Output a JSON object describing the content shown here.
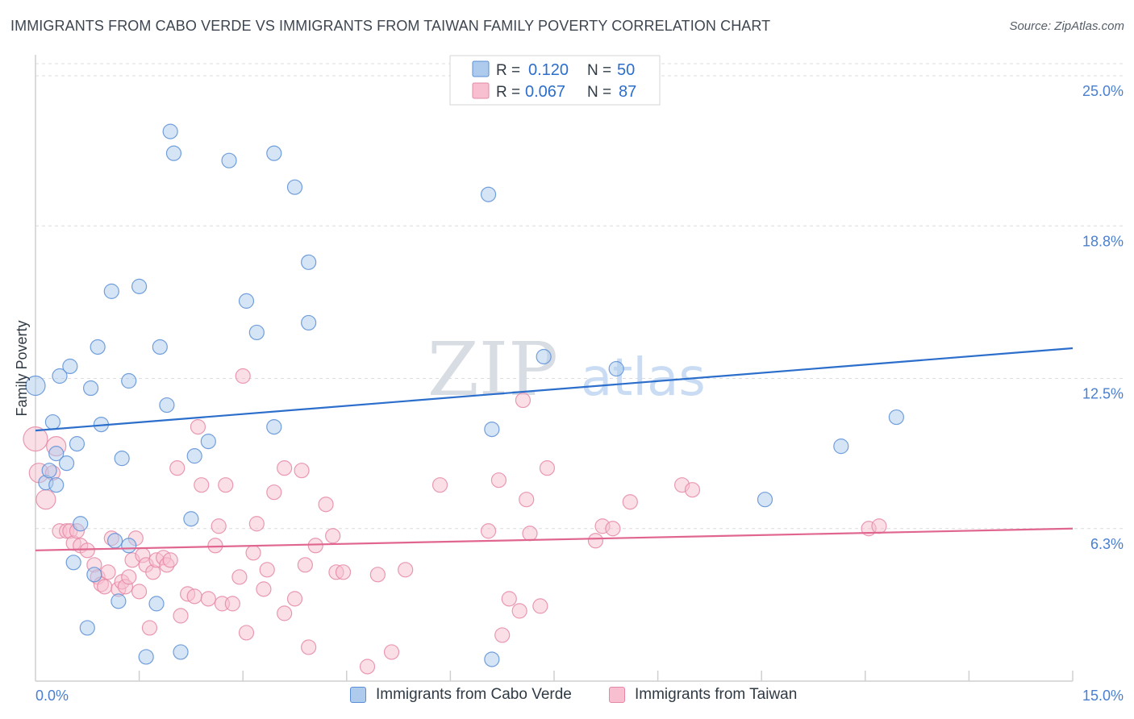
{
  "header": {
    "title": "IMMIGRANTS FROM CABO VERDE VS IMMIGRANTS FROM TAIWAN FAMILY POVERTY CORRELATION CHART",
    "source": "Source: ZipAtlas.com"
  },
  "colors": {
    "blue_fill": "#aecbee",
    "blue_stroke": "#5a8fd6",
    "blue_line": "#2c6ecb",
    "pink_fill": "#f7bfd0",
    "pink_stroke": "#e588a6",
    "pink_line": "#e0668f",
    "tick_text": "#4a7fd0",
    "grid": "#dcdcdc"
  },
  "chart_data": {
    "type": "scatter",
    "title": "IMMIGRANTS FROM CABO VERDE VS IMMIGRANTS FROM TAIWAN FAMILY POVERTY CORRELATION CHART",
    "xlabel": "",
    "ylabel": "Family Poverty",
    "xlim": [
      0,
      15
    ],
    "ylim": [
      0,
      25.8
    ],
    "x_tick_labels": [
      "0.0%",
      "15.0%"
    ],
    "y_ticks": [
      {
        "value": 25.0,
        "label": "25.0%"
      },
      {
        "value": 18.8,
        "label": "18.8%"
      },
      {
        "value": 12.5,
        "label": "12.5%"
      },
      {
        "value": 6.3,
        "label": "6.3%"
      }
    ],
    "watermark": {
      "bold": "ZIP",
      "light": "atlas"
    },
    "legend": [
      {
        "r_label": "R =",
        "r_value": "0.120",
        "n_label": "N =",
        "n_value": "50"
      },
      {
        "r_label": "R =",
        "r_value": "0.067",
        "n_label": "N =",
        "n_value": "87"
      }
    ],
    "series": [
      {
        "name": "Immigrants from Cabo Verde",
        "color": "blue",
        "trend": {
          "x": [
            0,
            15
          ],
          "y": [
            10.35,
            13.75
          ]
        },
        "points": [
          [
            0.0,
            12.2
          ],
          [
            0.15,
            8.2
          ],
          [
            0.2,
            8.7
          ],
          [
            0.25,
            10.7
          ],
          [
            0.3,
            9.4
          ],
          [
            0.3,
            8.1
          ],
          [
            0.35,
            12.6
          ],
          [
            0.45,
            9.0
          ],
          [
            0.5,
            13.0
          ],
          [
            0.55,
            4.9
          ],
          [
            0.6,
            9.8
          ],
          [
            0.65,
            6.5
          ],
          [
            0.75,
            2.2
          ],
          [
            0.8,
            12.1
          ],
          [
            0.85,
            4.4
          ],
          [
            0.9,
            13.8
          ],
          [
            0.95,
            10.6
          ],
          [
            1.1,
            16.1
          ],
          [
            1.15,
            5.8
          ],
          [
            1.2,
            3.3
          ],
          [
            1.25,
            9.2
          ],
          [
            1.35,
            12.4
          ],
          [
            1.35,
            5.6
          ],
          [
            1.5,
            16.3
          ],
          [
            1.6,
            1.0
          ],
          [
            1.75,
            3.2
          ],
          [
            1.8,
            13.8
          ],
          [
            1.9,
            11.4
          ],
          [
            1.95,
            22.7
          ],
          [
            2.0,
            21.8
          ],
          [
            2.1,
            1.2
          ],
          [
            2.25,
            6.7
          ],
          [
            2.3,
            9.3
          ],
          [
            2.5,
            9.9
          ],
          [
            2.8,
            21.5
          ],
          [
            3.05,
            15.7
          ],
          [
            3.2,
            14.4
          ],
          [
            3.45,
            21.8
          ],
          [
            3.45,
            10.5
          ],
          [
            3.75,
            20.4
          ],
          [
            3.95,
            14.8
          ],
          [
            3.95,
            17.3
          ],
          [
            6.55,
            20.1
          ],
          [
            6.6,
            10.4
          ],
          [
            6.6,
            0.9
          ],
          [
            7.35,
            13.4
          ],
          [
            8.4,
            12.9
          ],
          [
            11.65,
            9.7
          ],
          [
            12.45,
            10.9
          ],
          [
            10.55,
            7.5
          ]
        ]
      },
      {
        "name": "Immigrants from Taiwan",
        "color": "pink",
        "trend": {
          "x": [
            0,
            15
          ],
          "y": [
            5.4,
            6.3
          ]
        },
        "points": [
          [
            0.0,
            10.0
          ],
          [
            0.05,
            8.6
          ],
          [
            0.15,
            7.5
          ],
          [
            0.25,
            8.6
          ],
          [
            0.3,
            9.7
          ],
          [
            0.35,
            6.2
          ],
          [
            0.45,
            6.2
          ],
          [
            0.5,
            6.2
          ],
          [
            0.55,
            5.7
          ],
          [
            0.6,
            6.2
          ],
          [
            0.65,
            5.6
          ],
          [
            0.75,
            5.4
          ],
          [
            0.85,
            4.8
          ],
          [
            0.9,
            4.3
          ],
          [
            0.95,
            4.0
          ],
          [
            1.0,
            3.9
          ],
          [
            1.05,
            4.5
          ],
          [
            1.1,
            5.9
          ],
          [
            1.2,
            3.8
          ],
          [
            1.25,
            4.1
          ],
          [
            1.3,
            3.9
          ],
          [
            1.35,
            4.3
          ],
          [
            1.4,
            5.0
          ],
          [
            1.45,
            5.9
          ],
          [
            1.5,
            3.7
          ],
          [
            1.55,
            5.2
          ],
          [
            1.6,
            4.8
          ],
          [
            1.65,
            2.2
          ],
          [
            1.7,
            4.5
          ],
          [
            1.75,
            5.0
          ],
          [
            1.85,
            5.1
          ],
          [
            1.9,
            4.8
          ],
          [
            1.95,
            5.0
          ],
          [
            2.05,
            8.8
          ],
          [
            2.1,
            2.7
          ],
          [
            2.2,
            3.6
          ],
          [
            2.3,
            3.5
          ],
          [
            2.35,
            10.5
          ],
          [
            2.4,
            8.1
          ],
          [
            2.5,
            3.4
          ],
          [
            2.6,
            5.6
          ],
          [
            2.65,
            6.4
          ],
          [
            2.7,
            3.2
          ],
          [
            2.75,
            8.1
          ],
          [
            2.85,
            3.2
          ],
          [
            2.95,
            4.3
          ],
          [
            3.0,
            12.6
          ],
          [
            3.05,
            2.0
          ],
          [
            3.15,
            5.3
          ],
          [
            3.2,
            6.5
          ],
          [
            3.3,
            3.8
          ],
          [
            3.35,
            4.6
          ],
          [
            3.45,
            7.8
          ],
          [
            3.6,
            2.8
          ],
          [
            3.6,
            8.8
          ],
          [
            3.75,
            3.4
          ],
          [
            3.85,
            8.7
          ],
          [
            3.9,
            4.8
          ],
          [
            3.95,
            1.4
          ],
          [
            4.05,
            5.6
          ],
          [
            4.2,
            7.3
          ],
          [
            4.3,
            6.0
          ],
          [
            4.35,
            4.5
          ],
          [
            4.45,
            4.5
          ],
          [
            4.8,
            0.6
          ],
          [
            4.95,
            4.4
          ],
          [
            5.15,
            1.2
          ],
          [
            5.35,
            4.6
          ],
          [
            5.85,
            8.1
          ],
          [
            6.55,
            6.2
          ],
          [
            6.7,
            8.3
          ],
          [
            6.75,
            1.9
          ],
          [
            6.85,
            3.4
          ],
          [
            7.0,
            2.9
          ],
          [
            7.05,
            11.6
          ],
          [
            7.1,
            7.5
          ],
          [
            7.15,
            6.1
          ],
          [
            7.3,
            3.1
          ],
          [
            7.4,
            8.8
          ],
          [
            8.1,
            5.8
          ],
          [
            8.2,
            6.4
          ],
          [
            8.35,
            6.3
          ],
          [
            8.6,
            7.4
          ],
          [
            9.35,
            8.1
          ],
          [
            9.5,
            7.9
          ],
          [
            12.05,
            6.3
          ],
          [
            12.2,
            6.4
          ]
        ]
      }
    ]
  }
}
